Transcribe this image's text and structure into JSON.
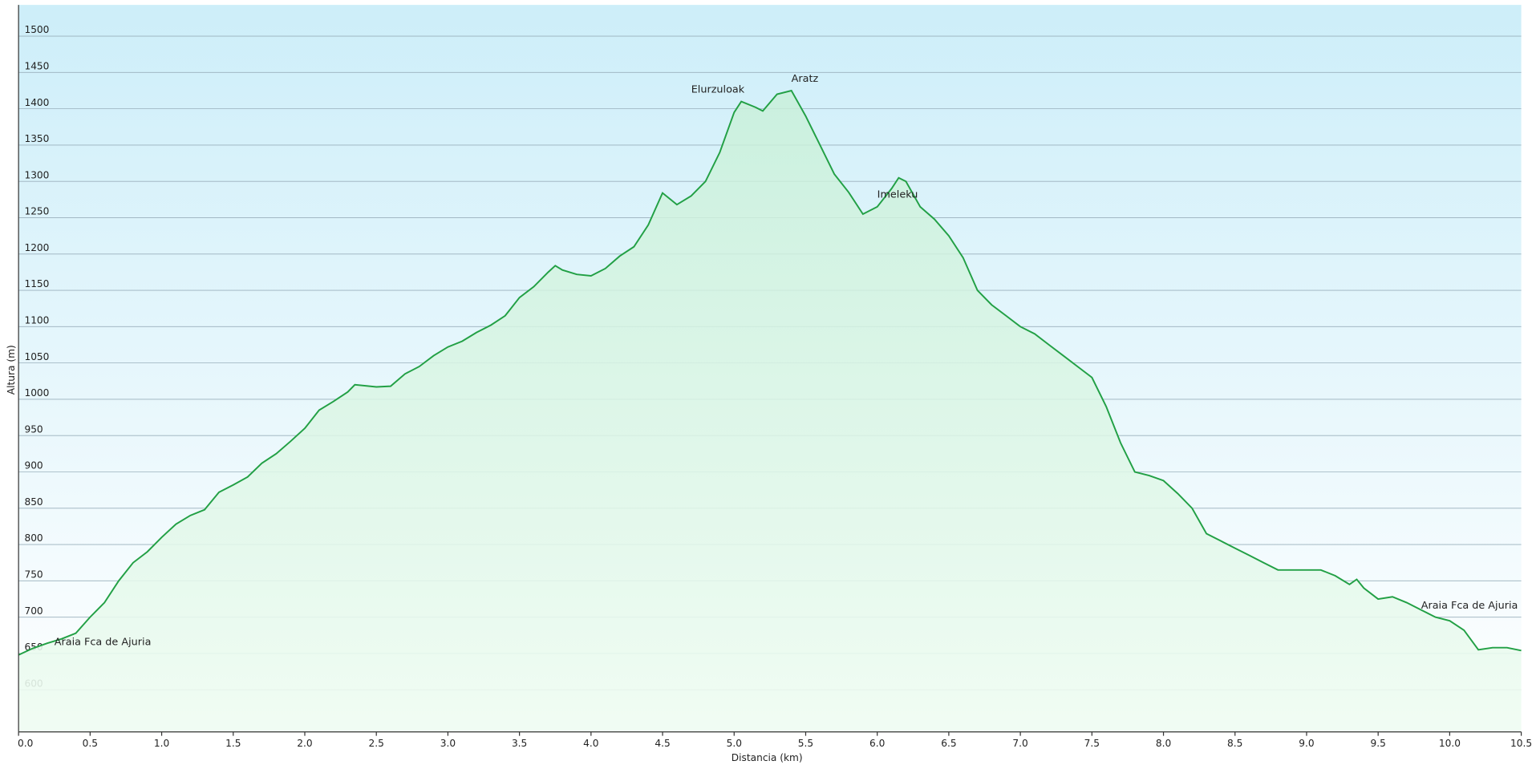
{
  "chart_data": {
    "type": "area",
    "xlabel": "Distancia  (km)",
    "ylabel": "Altura (m)",
    "xlim": [
      0,
      10.5
    ],
    "ylim": [
      542,
      1543
    ],
    "xticks": [
      {
        "value": 0,
        "label": "0.0"
      },
      0.5,
      {
        "value": 1,
        "label": "1.0"
      },
      1.5,
      {
        "value": 2,
        "label": "2.0"
      },
      2.5,
      {
        "value": 3,
        "label": "3.0"
      },
      3.5,
      {
        "value": 4,
        "label": "4.0"
      },
      4.5,
      {
        "value": 5,
        "label": "5.0"
      },
      5.5,
      {
        "value": 6,
        "label": "6.0"
      },
      6.5,
      {
        "value": 7,
        "label": "7.0"
      },
      7.5,
      {
        "value": 8,
        "label": "8.0"
      },
      8.5,
      {
        "value": 9,
        "label": "9.0"
      },
      9.5,
      {
        "value": 10,
        "label": "10.0"
      },
      10.5
    ],
    "yticks": [
      600,
      650,
      700,
      750,
      800,
      850,
      900,
      950,
      1000,
      1050,
      1100,
      1150,
      1200,
      1250,
      1300,
      1350,
      1400,
      1450,
      1500
    ],
    "grid": true,
    "color": "#22a045",
    "x": [
      0,
      0.1,
      0.2,
      0.3,
      0.4,
      0.5,
      0.6,
      0.7,
      0.8,
      0.9,
      1.0,
      1.1,
      1.2,
      1.3,
      1.4,
      1.5,
      1.6,
      1.7,
      1.8,
      1.9,
      2.0,
      2.1,
      2.2,
      2.3,
      2.35,
      2.5,
      2.6,
      2.7,
      2.8,
      2.9,
      3.0,
      3.1,
      3.2,
      3.3,
      3.4,
      3.5,
      3.6,
      3.7,
      3.75,
      3.8,
      3.9,
      4.0,
      4.1,
      4.2,
      4.3,
      4.4,
      4.5,
      4.6,
      4.7,
      4.8,
      4.9,
      5.0,
      5.05,
      5.15,
      5.2,
      5.3,
      5.4,
      5.5,
      5.6,
      5.7,
      5.8,
      5.9,
      6.0,
      6.1,
      6.15,
      6.2,
      6.3,
      6.4,
      6.5,
      6.6,
      6.7,
      6.8,
      6.9,
      7.0,
      7.1,
      7.2,
      7.3,
      7.4,
      7.5,
      7.6,
      7.7,
      7.8,
      7.9,
      8.0,
      8.1,
      8.2,
      8.3,
      8.4,
      8.5,
      8.6,
      8.7,
      8.8,
      8.9,
      9.0,
      9.1,
      9.2,
      9.3,
      9.35,
      9.4,
      9.5,
      9.6,
      9.7,
      9.8,
      9.9,
      10.0,
      10.1,
      10.2,
      10.3,
      10.4,
      10.5
    ],
    "values": [
      648,
      657,
      664,
      670,
      678,
      700,
      720,
      750,
      775,
      790,
      810,
      828,
      840,
      848,
      872,
      882,
      893,
      912,
      925,
      942,
      960,
      985,
      997,
      1010,
      1020,
      1017,
      1018,
      1035,
      1045,
      1060,
      1072,
      1080,
      1092,
      1102,
      1115,
      1140,
      1155,
      1175,
      1184,
      1178,
      1172,
      1170,
      1180,
      1197,
      1210,
      1240,
      1284,
      1268,
      1280,
      1300,
      1340,
      1395,
      1410,
      1402,
      1397,
      1420,
      1425,
      1390,
      1350,
      1310,
      1285,
      1255,
      1265,
      1290,
      1305,
      1300,
      1265,
      1248,
      1225,
      1195,
      1150,
      1130,
      1115,
      1100,
      1090,
      1075,
      1060,
      1045,
      1030,
      990,
      940,
      900,
      895,
      888,
      870,
      850,
      815,
      805,
      795,
      785,
      775,
      765,
      765,
      765,
      765,
      757,
      745,
      752,
      740,
      725,
      728,
      720,
      710,
      700,
      695,
      682,
      655,
      658,
      658,
      654
    ],
    "annotations": [
      {
        "text": "Araia  Fca de Ajuria",
        "x": 0.25
      },
      {
        "text": "Elurzuloak",
        "x": 4.7
      },
      {
        "text": "Aratz",
        "x": 5.4
      },
      {
        "text": "Imeleku",
        "x": 6.0
      },
      {
        "text": "Araia Fca de Ajuria",
        "x": 9.8
      }
    ]
  }
}
